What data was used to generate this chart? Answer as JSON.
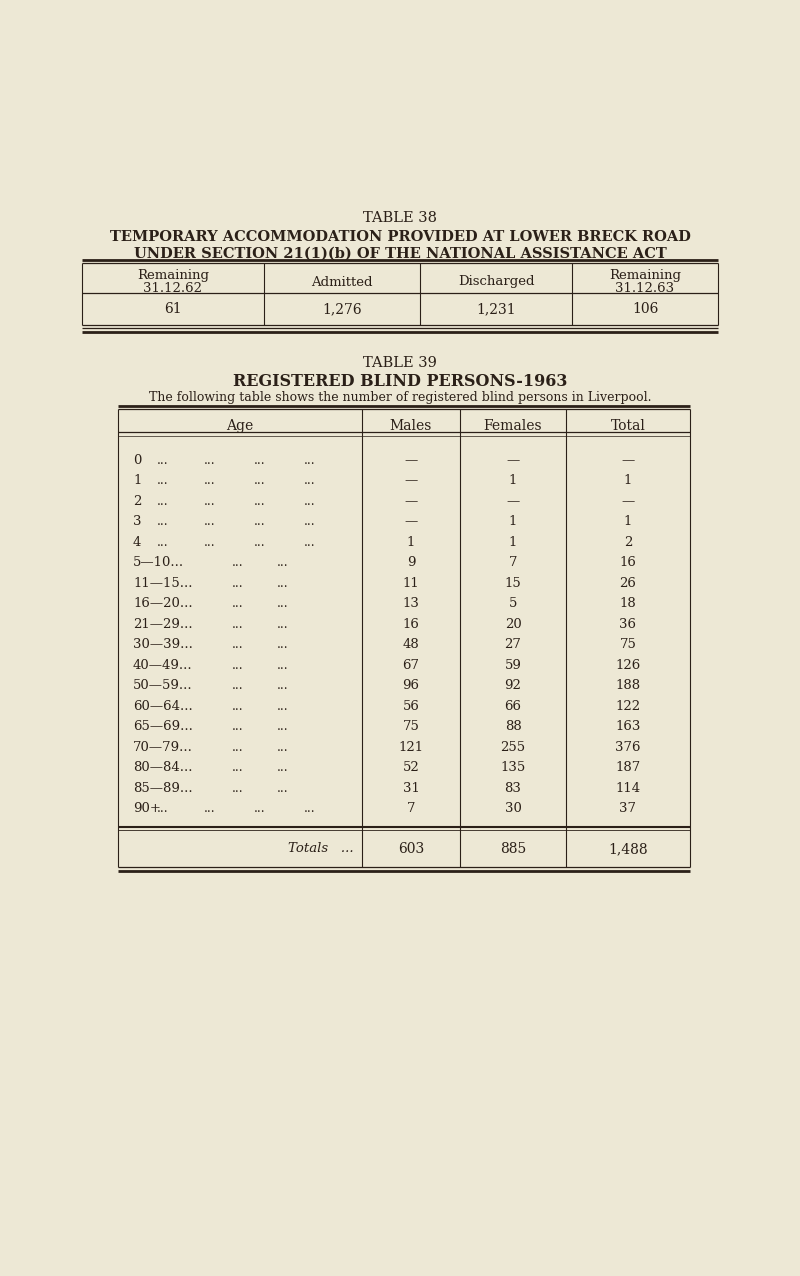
{
  "bg_color": "#ede8d5",
  "text_color": "#2b2018",
  "table38_title": "TABLE 38",
  "table38_subtitle1": "TEMPORARY ACCOMMODATION PROVIDED AT LOWER BRECK ROAD",
  "table38_subtitle2": "UNDER SECTION 21(1)(b) OF THE NATIONAL ASSISTANCE ACT",
  "table38_headers": [
    "Remaining\n31.12.62",
    "Admitted",
    "Discharged",
    "Remaining\n31.12.63"
  ],
  "table38_data": [
    "61",
    "1,276",
    "1,231",
    "106"
  ],
  "table39_title": "TABLE 39",
  "table39_subtitle": "REGISTERED BLIND PERSONS-1963",
  "table39_desc": "The following table shows the number of registered blind persons in Liverpool.",
  "table39_headers": [
    "Age",
    "Males",
    "Females",
    "Total"
  ],
  "table39_ages": [
    [
      "0",
      "...",
      "...",
      "..."
    ],
    [
      "1",
      "...",
      "...",
      "..."
    ],
    [
      "2",
      "...",
      "...",
      "..."
    ],
    [
      "3",
      "...",
      "...",
      "..."
    ],
    [
      "4",
      "...",
      "...",
      "..."
    ],
    [
      "5—10...",
      "...",
      "...",
      null
    ],
    [
      "11—15...",
      "...",
      "...",
      null
    ],
    [
      "16—20...",
      "...",
      "...",
      null
    ],
    [
      "21—29...",
      "...",
      "...",
      null
    ],
    [
      "30—39...",
      "...",
      "...",
      null
    ],
    [
      "40—49...",
      "...",
      "...",
      null
    ],
    [
      "50—59...",
      "...",
      "...",
      null
    ],
    [
      "60—64...",
      "...",
      "...",
      null
    ],
    [
      "65—69...",
      "...",
      "...",
      null
    ],
    [
      "70—79...",
      "...",
      "...",
      null
    ],
    [
      "80—84...",
      "...",
      "...",
      null
    ],
    [
      "85—89...",
      "...",
      "...",
      null
    ],
    [
      "90+",
      "...",
      "...",
      "..."
    ]
  ],
  "table39_males": [
    "—",
    "—",
    "—",
    "—",
    "1",
    "9",
    "11",
    "13",
    "16",
    "48",
    "67",
    "96",
    "56",
    "75",
    "121",
    "52",
    "31",
    "7"
  ],
  "table39_females": [
    "—",
    "1",
    "—",
    "1",
    "1",
    "7",
    "15",
    "5",
    "20",
    "27",
    "59",
    "92",
    "66",
    "88",
    "255",
    "135",
    "83",
    "30"
  ],
  "table39_totals": [
    "—",
    "1",
    "—",
    "1",
    "2",
    "16",
    "26",
    "18",
    "36",
    "75",
    "126",
    "188",
    "122",
    "163",
    "376",
    "187",
    "114",
    "37"
  ],
  "totals_label": "Totals",
  "totals_males": "603",
  "totals_females": "885",
  "totals_total": "1,488"
}
